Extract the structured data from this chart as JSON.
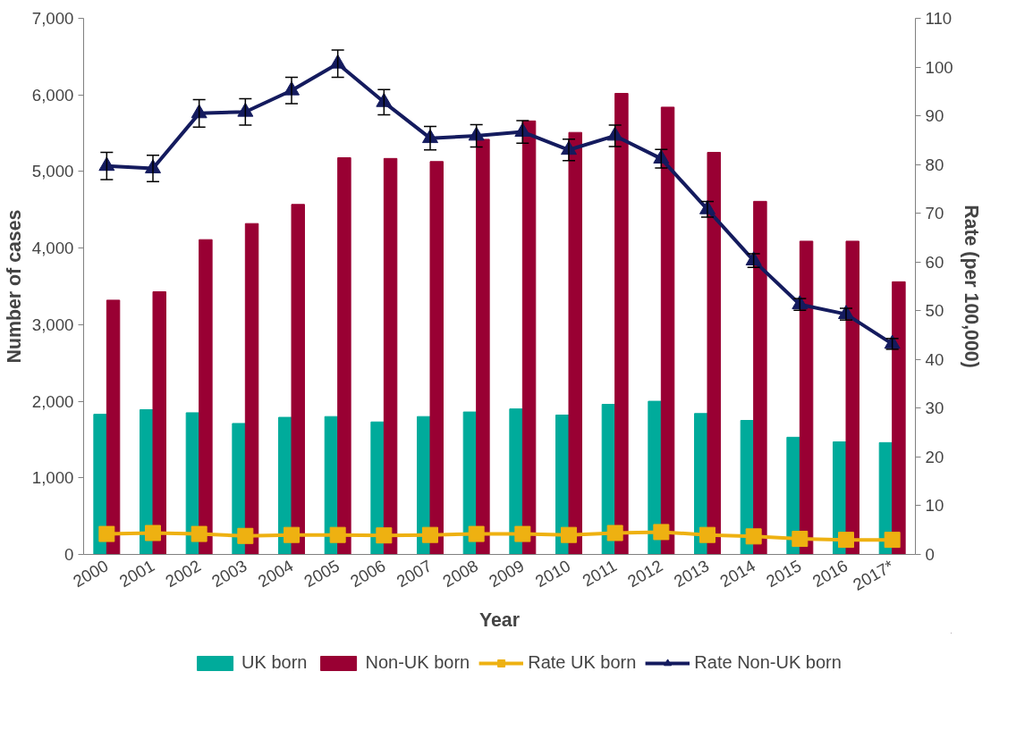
{
  "chart_data": {
    "type": "bar",
    "xlabel": "Year",
    "ylabel": "Number of cases",
    "y2label": "Rate (per 100,000)",
    "categories": [
      "2000",
      "2001",
      "2002",
      "2003",
      "2004",
      "2005",
      "2006",
      "2007",
      "2008",
      "2009",
      "2010",
      "2011",
      "2012",
      "2013",
      "2014",
      "2015",
      "2016",
      "2017*"
    ],
    "series": [
      {
        "name": "UK born",
        "color": "#00ab9b",
        "values": [
          1830,
          1890,
          1850,
          1710,
          1790,
          1800,
          1730,
          1800,
          1860,
          1900,
          1820,
          1960,
          2000,
          1840,
          1750,
          1530,
          1470,
          1460
        ]
      },
      {
        "name": "Non-UK born",
        "color": "#990033",
        "values": [
          3320,
          3430,
          4110,
          4320,
          4570,
          5180,
          5170,
          5130,
          5420,
          5660,
          5510,
          6020,
          5840,
          5250,
          4610,
          4090,
          4090,
          3560
        ]
      },
      {
        "name": "Rate UK born",
        "type": "line",
        "axis": "y2",
        "color": "#eeb111",
        "marker": "square",
        "values": [
          4.2,
          4.4,
          4.2,
          3.8,
          4.0,
          4.0,
          3.9,
          4.0,
          4.2,
          4.2,
          4.0,
          4.4,
          4.6,
          4.0,
          3.7,
          3.2,
          3.0,
          3.0
        ]
      },
      {
        "name": "Rate Non-UK born",
        "type": "line",
        "axis": "y2",
        "color": "#141b5e",
        "marker": "triangle",
        "values": [
          79.7,
          79.2,
          90.5,
          90.8,
          95.2,
          100.7,
          92.8,
          85.4,
          85.9,
          86.7,
          83.0,
          85.9,
          81.2,
          70.8,
          60.3,
          51.3,
          49.3,
          43.2
        ],
        "errors": [
          2.8,
          2.7,
          2.8,
          2.7,
          2.7,
          2.8,
          2.6,
          2.4,
          2.3,
          2.3,
          2.2,
          2.2,
          1.9,
          1.6,
          1.4,
          1.2,
          1.2,
          1.1
        ]
      }
    ],
    "ylim": [
      0,
      7000
    ],
    "yticks": [
      0,
      {
        "value": 1000,
        "label": "1,000"
      },
      {
        "value": 2000,
        "label": "2,000"
      },
      {
        "value": 3000,
        "label": "3,000"
      },
      {
        "value": 4000,
        "label": "4,000"
      },
      {
        "value": 5000,
        "label": "5,000"
      },
      {
        "value": 6000,
        "label": "6,000"
      },
      {
        "value": 7000,
        "label": "7,000"
      }
    ],
    "y2lim": [
      0,
      110
    ],
    "y2ticks": [
      0,
      10,
      20,
      30,
      40,
      50,
      60,
      70,
      80,
      90,
      100,
      110
    ],
    "grid": false,
    "legend": "bottom"
  }
}
